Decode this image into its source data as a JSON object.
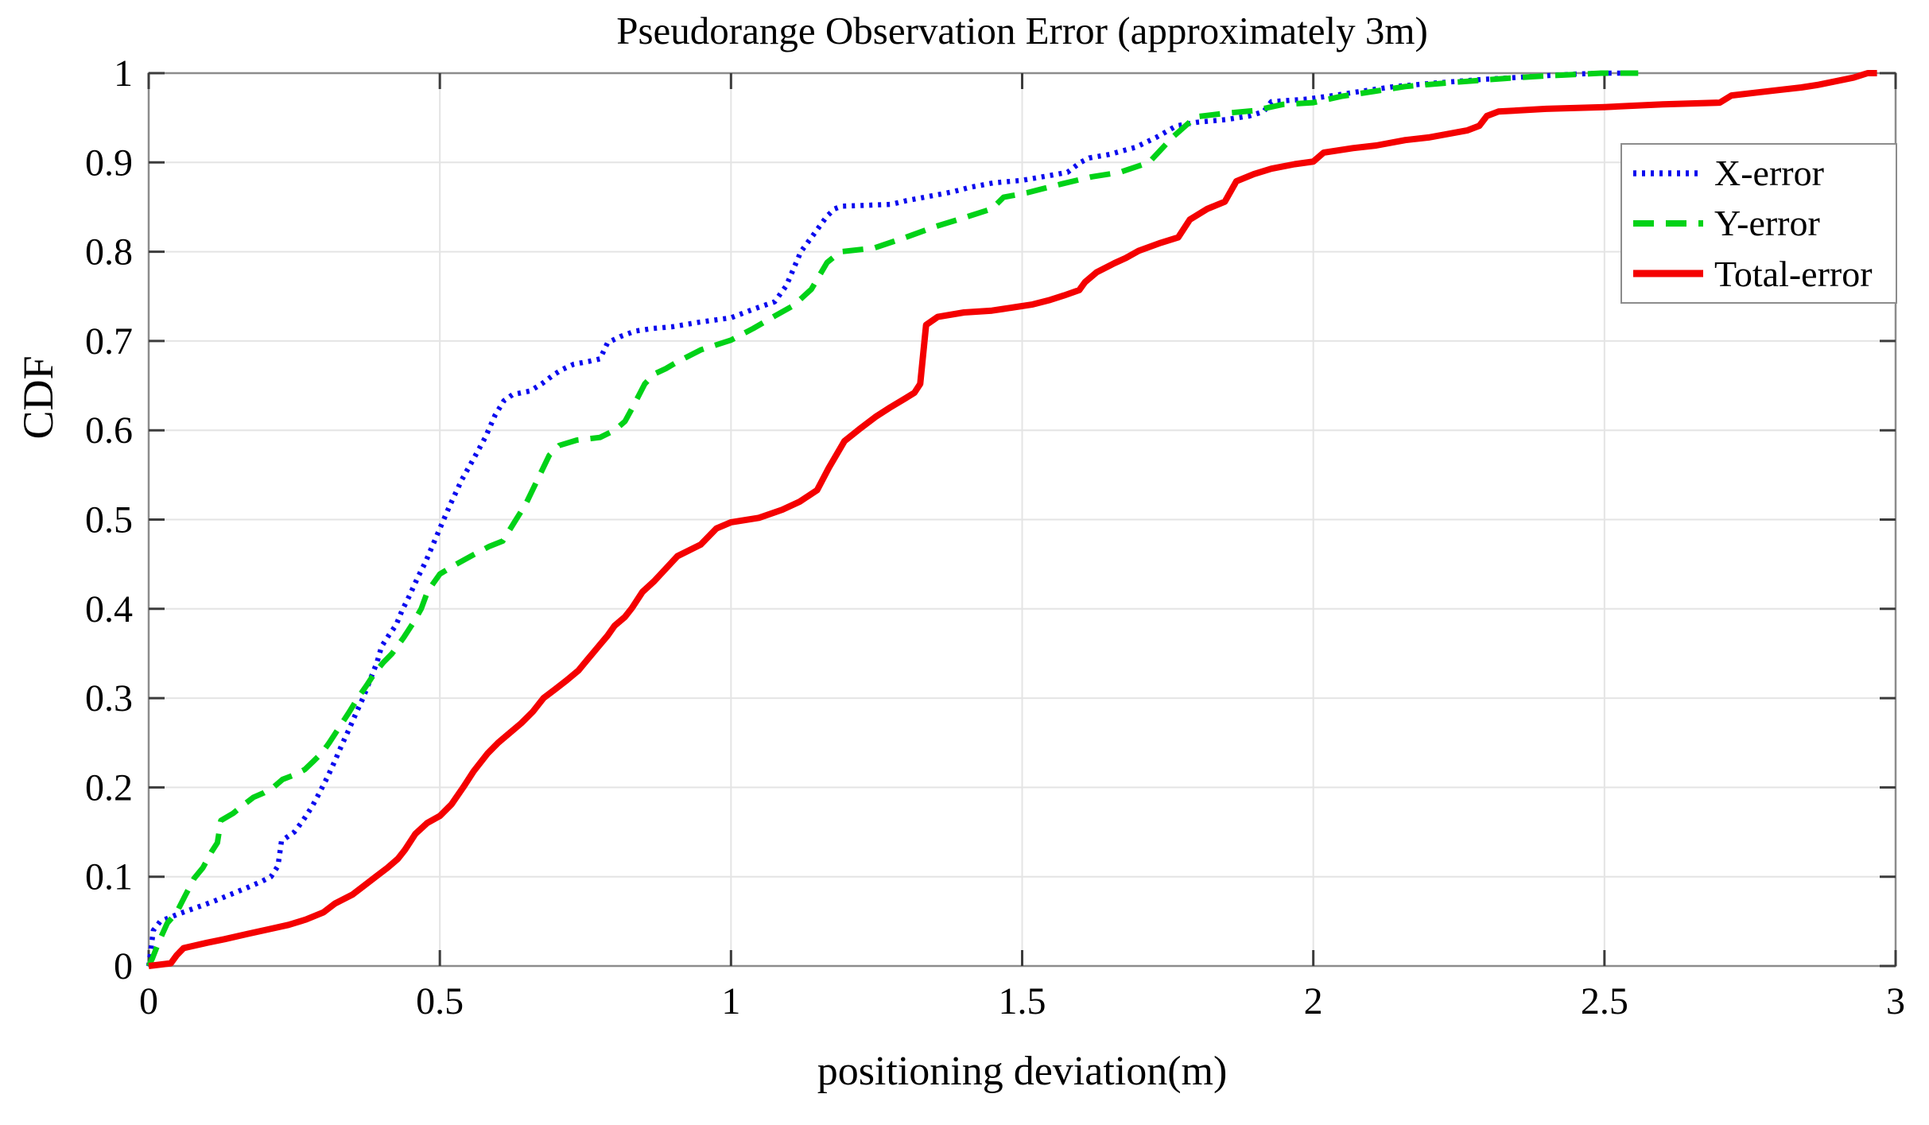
{
  "chart_data": {
    "type": "line",
    "title": "Pseudorange Observation Error (approximately 3m)",
    "xlabel": "positioning deviation(m)",
    "ylabel": "CDF",
    "xlim": [
      0,
      3
    ],
    "ylim": [
      0,
      1
    ],
    "grid": true,
    "legend_position": "upper-right-inside",
    "x_ticks": [
      {
        "value": 0,
        "label": "0"
      },
      {
        "value": 0.5,
        "label": "0.5"
      },
      {
        "value": 1,
        "label": "1"
      },
      {
        "value": 1.5,
        "label": "1.5"
      },
      {
        "value": 2,
        "label": "2"
      },
      {
        "value": 2.5,
        "label": "2.5"
      },
      {
        "value": 3,
        "label": "3"
      }
    ],
    "y_ticks": [
      {
        "value": 0,
        "label": "0"
      },
      {
        "value": 0.1,
        "label": "0.1"
      },
      {
        "value": 0.2,
        "label": "0.2"
      },
      {
        "value": 0.3,
        "label": "0.3"
      },
      {
        "value": 0.4,
        "label": "0.4"
      },
      {
        "value": 0.5,
        "label": "0.5"
      },
      {
        "value": 0.6,
        "label": "0.6"
      },
      {
        "value": 0.7,
        "label": "0.7"
      },
      {
        "value": 0.8,
        "label": "0.8"
      },
      {
        "value": 0.9,
        "label": "0.9"
      },
      {
        "value": 1,
        "label": "1"
      }
    ],
    "colors": {
      "x_error": "#0b0bee",
      "y_error": "#00d217",
      "total_error": "#f40000",
      "grid": "#e4e4e4",
      "spine": "#8c8c8c",
      "tick": "#3c3c3c"
    },
    "series": [
      {
        "name": "X-error",
        "color": "#0b0bee",
        "style": "dotted",
        "points": [
          [
            0,
            0
          ],
          [
            0.008,
            0.04
          ],
          [
            0.02,
            0.05
          ],
          [
            0.05,
            0.058
          ],
          [
            0.08,
            0.065
          ],
          [
            0.11,
            0.072
          ],
          [
            0.14,
            0.08
          ],
          [
            0.17,
            0.088
          ],
          [
            0.195,
            0.095
          ],
          [
            0.21,
            0.1
          ],
          [
            0.222,
            0.112
          ],
          [
            0.228,
            0.14
          ],
          [
            0.25,
            0.15
          ],
          [
            0.265,
            0.163
          ],
          [
            0.28,
            0.178
          ],
          [
            0.29,
            0.19
          ],
          [
            0.298,
            0.2
          ],
          [
            0.308,
            0.213
          ],
          [
            0.32,
            0.23
          ],
          [
            0.332,
            0.248
          ],
          [
            0.344,
            0.265
          ],
          [
            0.356,
            0.283
          ],
          [
            0.368,
            0.3
          ],
          [
            0.38,
            0.32
          ],
          [
            0.392,
            0.34
          ],
          [
            0.4,
            0.358
          ],
          [
            0.412,
            0.37
          ],
          [
            0.425,
            0.382
          ],
          [
            0.435,
            0.398
          ],
          [
            0.448,
            0.415
          ],
          [
            0.462,
            0.435
          ],
          [
            0.475,
            0.452
          ],
          [
            0.487,
            0.47
          ],
          [
            0.5,
            0.49
          ],
          [
            0.518,
            0.517
          ],
          [
            0.538,
            0.545
          ],
          [
            0.558,
            0.568
          ],
          [
            0.578,
            0.592
          ],
          [
            0.595,
            0.617
          ],
          [
            0.61,
            0.633
          ],
          [
            0.625,
            0.64
          ],
          [
            0.655,
            0.644
          ],
          [
            0.675,
            0.652
          ],
          [
            0.695,
            0.662
          ],
          [
            0.71,
            0.668
          ],
          [
            0.73,
            0.674
          ],
          [
            0.755,
            0.677
          ],
          [
            0.775,
            0.68
          ],
          [
            0.788,
            0.698
          ],
          [
            0.81,
            0.705
          ],
          [
            0.835,
            0.711
          ],
          [
            0.865,
            0.714
          ],
          [
            0.9,
            0.716
          ],
          [
            0.945,
            0.721
          ],
          [
            1.0,
            0.726
          ],
          [
            1.04,
            0.736
          ],
          [
            1.075,
            0.744
          ],
          [
            1.095,
            0.762
          ],
          [
            1.12,
            0.8
          ],
          [
            1.145,
            0.822
          ],
          [
            1.165,
            0.84
          ],
          [
            1.178,
            0.848
          ],
          [
            1.19,
            0.851
          ],
          [
            1.275,
            0.853
          ],
          [
            1.3,
            0.857
          ],
          [
            1.34,
            0.862
          ],
          [
            1.38,
            0.867
          ],
          [
            1.41,
            0.872
          ],
          [
            1.45,
            0.877
          ],
          [
            1.5,
            0.88
          ],
          [
            1.545,
            0.885
          ],
          [
            1.578,
            0.889
          ],
          [
            1.6,
            0.9
          ],
          [
            1.615,
            0.905
          ],
          [
            1.65,
            0.909
          ],
          [
            1.695,
            0.917
          ],
          [
            1.73,
            0.928
          ],
          [
            1.765,
            0.941
          ],
          [
            1.8,
            0.945
          ],
          [
            1.85,
            0.948
          ],
          [
            1.89,
            0.952
          ],
          [
            1.915,
            0.957
          ],
          [
            1.928,
            0.968
          ],
          [
            1.99,
            0.971
          ],
          [
            2.035,
            0.975
          ],
          [
            2.085,
            0.98
          ],
          [
            2.14,
            0.985
          ],
          [
            2.21,
            0.989
          ],
          [
            2.29,
            0.993
          ],
          [
            2.37,
            0.996
          ],
          [
            2.45,
            0.999
          ],
          [
            2.5,
            1.0
          ],
          [
            2.545,
            1.0
          ]
        ]
      },
      {
        "name": "Y-error",
        "color": "#00d217",
        "style": "dashed",
        "points": [
          [
            0,
            0
          ],
          [
            0.006,
            0.008
          ],
          [
            0.018,
            0.028
          ],
          [
            0.032,
            0.048
          ],
          [
            0.048,
            0.06
          ],
          [
            0.062,
            0.078
          ],
          [
            0.078,
            0.098
          ],
          [
            0.093,
            0.11
          ],
          [
            0.108,
            0.128
          ],
          [
            0.118,
            0.138
          ],
          [
            0.124,
            0.163
          ],
          [
            0.145,
            0.171
          ],
          [
            0.162,
            0.18
          ],
          [
            0.18,
            0.189
          ],
          [
            0.198,
            0.194
          ],
          [
            0.214,
            0.2
          ],
          [
            0.23,
            0.209
          ],
          [
            0.25,
            0.214
          ],
          [
            0.268,
            0.22
          ],
          [
            0.284,
            0.23
          ],
          [
            0.298,
            0.239
          ],
          [
            0.31,
            0.25
          ],
          [
            0.328,
            0.268
          ],
          [
            0.344,
            0.284
          ],
          [
            0.359,
            0.3
          ],
          [
            0.374,
            0.314
          ],
          [
            0.388,
            0.328
          ],
          [
            0.403,
            0.34
          ],
          [
            0.418,
            0.35
          ],
          [
            0.438,
            0.368
          ],
          [
            0.453,
            0.383
          ],
          [
            0.468,
            0.4
          ],
          [
            0.478,
            0.418
          ],
          [
            0.488,
            0.428
          ],
          [
            0.5,
            0.439
          ],
          [
            0.528,
            0.45
          ],
          [
            0.556,
            0.46
          ],
          [
            0.585,
            0.47
          ],
          [
            0.608,
            0.476
          ],
          [
            0.628,
            0.497
          ],
          [
            0.648,
            0.518
          ],
          [
            0.668,
            0.545
          ],
          [
            0.688,
            0.572
          ],
          [
            0.705,
            0.583
          ],
          [
            0.735,
            0.589
          ],
          [
            0.775,
            0.592
          ],
          [
            0.8,
            0.6
          ],
          [
            0.818,
            0.61
          ],
          [
            0.833,
            0.628
          ],
          [
            0.852,
            0.652
          ],
          [
            0.868,
            0.663
          ],
          [
            0.888,
            0.669
          ],
          [
            0.906,
            0.676
          ],
          [
            0.948,
            0.69
          ],
          [
            1.0,
            0.701
          ],
          [
            1.038,
            0.714
          ],
          [
            1.075,
            0.728
          ],
          [
            1.108,
            0.74
          ],
          [
            1.138,
            0.758
          ],
          [
            1.165,
            0.788
          ],
          [
            1.188,
            0.8
          ],
          [
            1.245,
            0.804
          ],
          [
            1.3,
            0.816
          ],
          [
            1.35,
            0.828
          ],
          [
            1.4,
            0.838
          ],
          [
            1.448,
            0.848
          ],
          [
            1.468,
            0.861
          ],
          [
            1.508,
            0.866
          ],
          [
            1.568,
            0.876
          ],
          [
            1.62,
            0.884
          ],
          [
            1.668,
            0.889
          ],
          [
            1.718,
            0.9
          ],
          [
            1.758,
            0.928
          ],
          [
            1.798,
            0.951
          ],
          [
            1.848,
            0.955
          ],
          [
            1.898,
            0.958
          ],
          [
            1.948,
            0.965
          ],
          [
            2.0,
            0.967
          ],
          [
            2.048,
            0.974
          ],
          [
            2.108,
            0.98
          ],
          [
            2.158,
            0.985
          ],
          [
            2.248,
            0.99
          ],
          [
            2.328,
            0.994
          ],
          [
            2.4,
            0.997
          ],
          [
            2.495,
            1.0
          ],
          [
            2.558,
            1.0
          ]
        ]
      },
      {
        "name": "Total-error",
        "color": "#f40000",
        "style": "solid",
        "points": [
          [
            0,
            0
          ],
          [
            0.038,
            0.003
          ],
          [
            0.048,
            0.012
          ],
          [
            0.06,
            0.02
          ],
          [
            0.1,
            0.026
          ],
          [
            0.13,
            0.03
          ],
          [
            0.17,
            0.036
          ],
          [
            0.205,
            0.041
          ],
          [
            0.24,
            0.046
          ],
          [
            0.27,
            0.052
          ],
          [
            0.3,
            0.06
          ],
          [
            0.32,
            0.07
          ],
          [
            0.35,
            0.08
          ],
          [
            0.37,
            0.09
          ],
          [
            0.39,
            0.1
          ],
          [
            0.41,
            0.11
          ],
          [
            0.428,
            0.12
          ],
          [
            0.44,
            0.13
          ],
          [
            0.458,
            0.148
          ],
          [
            0.478,
            0.16
          ],
          [
            0.5,
            0.168
          ],
          [
            0.52,
            0.181
          ],
          [
            0.54,
            0.2
          ],
          [
            0.558,
            0.218
          ],
          [
            0.582,
            0.238
          ],
          [
            0.6,
            0.25
          ],
          [
            0.62,
            0.261
          ],
          [
            0.64,
            0.272
          ],
          [
            0.66,
            0.285
          ],
          [
            0.678,
            0.3
          ],
          [
            0.698,
            0.31
          ],
          [
            0.718,
            0.32
          ],
          [
            0.738,
            0.331
          ],
          [
            0.752,
            0.342
          ],
          [
            0.77,
            0.356
          ],
          [
            0.788,
            0.37
          ],
          [
            0.8,
            0.381
          ],
          [
            0.818,
            0.391
          ],
          [
            0.83,
            0.401
          ],
          [
            0.848,
            0.419
          ],
          [
            0.868,
            0.431
          ],
          [
            0.888,
            0.445
          ],
          [
            0.908,
            0.459
          ],
          [
            0.948,
            0.472
          ],
          [
            0.975,
            0.49
          ],
          [
            1.0,
            0.497
          ],
          [
            1.048,
            0.502
          ],
          [
            1.088,
            0.511
          ],
          [
            1.118,
            0.52
          ],
          [
            1.148,
            0.533
          ],
          [
            1.168,
            0.558
          ],
          [
            1.195,
            0.588
          ],
          [
            1.22,
            0.601
          ],
          [
            1.248,
            0.615
          ],
          [
            1.272,
            0.625
          ],
          [
            1.3,
            0.636
          ],
          [
            1.315,
            0.642
          ],
          [
            1.325,
            0.652
          ],
          [
            1.335,
            0.718
          ],
          [
            1.355,
            0.727
          ],
          [
            1.4,
            0.732
          ],
          [
            1.448,
            0.734
          ],
          [
            1.468,
            0.736
          ],
          [
            1.518,
            0.741
          ],
          [
            1.548,
            0.746
          ],
          [
            1.572,
            0.751
          ],
          [
            1.598,
            0.757
          ],
          [
            1.608,
            0.766
          ],
          [
            1.628,
            0.777
          ],
          [
            1.658,
            0.787
          ],
          [
            1.678,
            0.793
          ],
          [
            1.7,
            0.801
          ],
          [
            1.738,
            0.81
          ],
          [
            1.768,
            0.816
          ],
          [
            1.788,
            0.836
          ],
          [
            1.818,
            0.848
          ],
          [
            1.848,
            0.856
          ],
          [
            1.868,
            0.879
          ],
          [
            1.898,
            0.887
          ],
          [
            1.928,
            0.893
          ],
          [
            1.968,
            0.898
          ],
          [
            2.0,
            0.901
          ],
          [
            2.018,
            0.911
          ],
          [
            2.068,
            0.916
          ],
          [
            2.108,
            0.919
          ],
          [
            2.158,
            0.925
          ],
          [
            2.198,
            0.928
          ],
          [
            2.265,
            0.936
          ],
          [
            2.285,
            0.941
          ],
          [
            2.298,
            0.952
          ],
          [
            2.318,
            0.957
          ],
          [
            2.4,
            0.96
          ],
          [
            2.5,
            0.962
          ],
          [
            2.6,
            0.965
          ],
          [
            2.698,
            0.967
          ],
          [
            2.718,
            0.975
          ],
          [
            2.758,
            0.978
          ],
          [
            2.798,
            0.981
          ],
          [
            2.838,
            0.984
          ],
          [
            2.868,
            0.987
          ],
          [
            2.898,
            0.991
          ],
          [
            2.928,
            0.995
          ],
          [
            2.952,
            1.0
          ],
          [
            2.968,
            1.0
          ]
        ]
      }
    ]
  }
}
